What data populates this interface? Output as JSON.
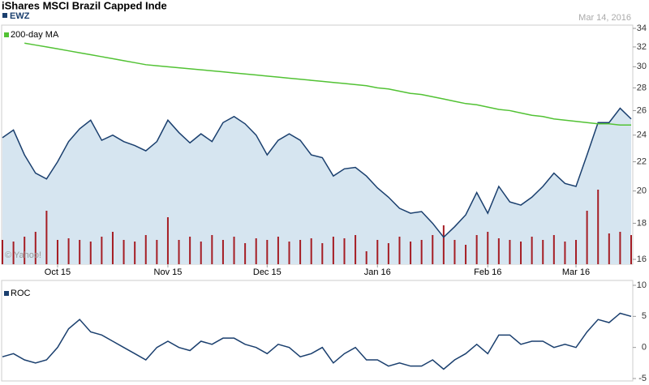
{
  "chart_data": [
    {
      "type": "line",
      "title": "iShares MSCI Brazil Capped Inde",
      "date": "Mar 14, 2016",
      "watermark": "© Yahoo!",
      "log": true,
      "categories": [
        null,
        null,
        null,
        null,
        null,
        "Oct 15",
        null,
        null,
        null,
        null,
        null,
        null,
        null,
        null,
        null,
        "Nov 15",
        null,
        null,
        null,
        null,
        null,
        null,
        null,
        null,
        "Dec 15",
        null,
        null,
        null,
        null,
        null,
        null,
        null,
        null,
        null,
        "Jan 16",
        null,
        null,
        null,
        null,
        null,
        null,
        null,
        null,
        null,
        "Feb 16",
        null,
        null,
        null,
        null,
        null,
        null,
        null,
        "Mar 16",
        null,
        null,
        null,
        null,
        null
      ],
      "series": [
        {
          "name": "EWZ",
          "color": "#1a3f6e",
          "fill": "#d6e5f0",
          "values": [
            23.8,
            24.4,
            22.5,
            21.2,
            20.8,
            22,
            23.5,
            24.5,
            25.2,
            23.6,
            24,
            23.5,
            23.2,
            22.8,
            23.5,
            25.2,
            24.2,
            23.4,
            24.1,
            23.5,
            25,
            25.5,
            24.9,
            24,
            22.5,
            23.6,
            24.1,
            23.6,
            22.5,
            22.3,
            21,
            21.5,
            21.6,
            21,
            20.2,
            19.6,
            18.9,
            18.6,
            18.7,
            18,
            17.2,
            17.8,
            18.5,
            19.9,
            18.6,
            20.3,
            19.3,
            19.1,
            19.6,
            20.3,
            21.2,
            20.5,
            20.3,
            22.5,
            25,
            25,
            26.2,
            25.3
          ]
        },
        {
          "name": "200-day MA",
          "color": "#52c234",
          "values": [
            null,
            null,
            32.4,
            32.2,
            32.0,
            31.8,
            31.6,
            31.4,
            31.2,
            31.0,
            30.8,
            30.6,
            30.4,
            30.2,
            30.1,
            30.0,
            29.9,
            29.8,
            29.7,
            29.6,
            29.5,
            29.4,
            29.3,
            29.2,
            29.1,
            29.0,
            28.9,
            28.8,
            28.7,
            28.6,
            28.5,
            28.4,
            28.3,
            28.2,
            28.0,
            27.9,
            27.7,
            27.5,
            27.4,
            27.2,
            27.0,
            26.8,
            26.6,
            26.5,
            26.3,
            26.1,
            26.0,
            25.8,
            25.6,
            25.5,
            25.3,
            25.2,
            25.1,
            25.0,
            24.9,
            24.9,
            24.8,
            24.8
          ]
        }
      ],
      "volume": {
        "color": "#a51d24",
        "lim": [
          0,
          100
        ],
        "values": [
          30,
          28,
          34,
          40,
          66,
          30,
          32,
          30,
          28,
          34,
          40,
          30,
          28,
          36,
          30,
          58,
          30,
          34,
          28,
          36,
          30,
          34,
          26,
          32,
          30,
          34,
          28,
          30,
          32,
          26,
          34,
          32,
          36,
          16,
          30,
          26,
          34,
          28,
          30,
          36,
          48,
          30,
          24,
          36,
          40,
          32,
          30,
          28,
          34,
          30,
          36,
          28,
          30,
          66,
          92,
          38,
          40,
          36
        ]
      },
      "ylim": [
        16,
        34
      ],
      "yticks": [
        16,
        18,
        20,
        22,
        24,
        26,
        28,
        30,
        32,
        34
      ]
    },
    {
      "type": "line",
      "series": [
        {
          "name": "ROC",
          "color": "#1a3f6e",
          "values": [
            -1.5,
            -1,
            -2,
            -2.5,
            -2,
            0,
            3,
            4.5,
            2.5,
            2,
            1,
            0,
            -1,
            -2,
            0,
            1,
            0,
            -0.5,
            1,
            0.5,
            1.5,
            1.5,
            0.5,
            0,
            -1,
            0.5,
            0,
            -1.5,
            -1,
            0,
            -2.5,
            -1,
            0,
            -2,
            -2,
            -3,
            -2.5,
            -3,
            -3,
            -2,
            -3.5,
            -2,
            -1,
            0.5,
            -1,
            2,
            2,
            0.5,
            1,
            1,
            0,
            0.5,
            0,
            2.5,
            4.5,
            4,
            5.5,
            5
          ]
        }
      ],
      "ylim": [
        -5,
        10
      ],
      "yticks": [
        -5,
        0,
        5,
        10
      ]
    }
  ]
}
